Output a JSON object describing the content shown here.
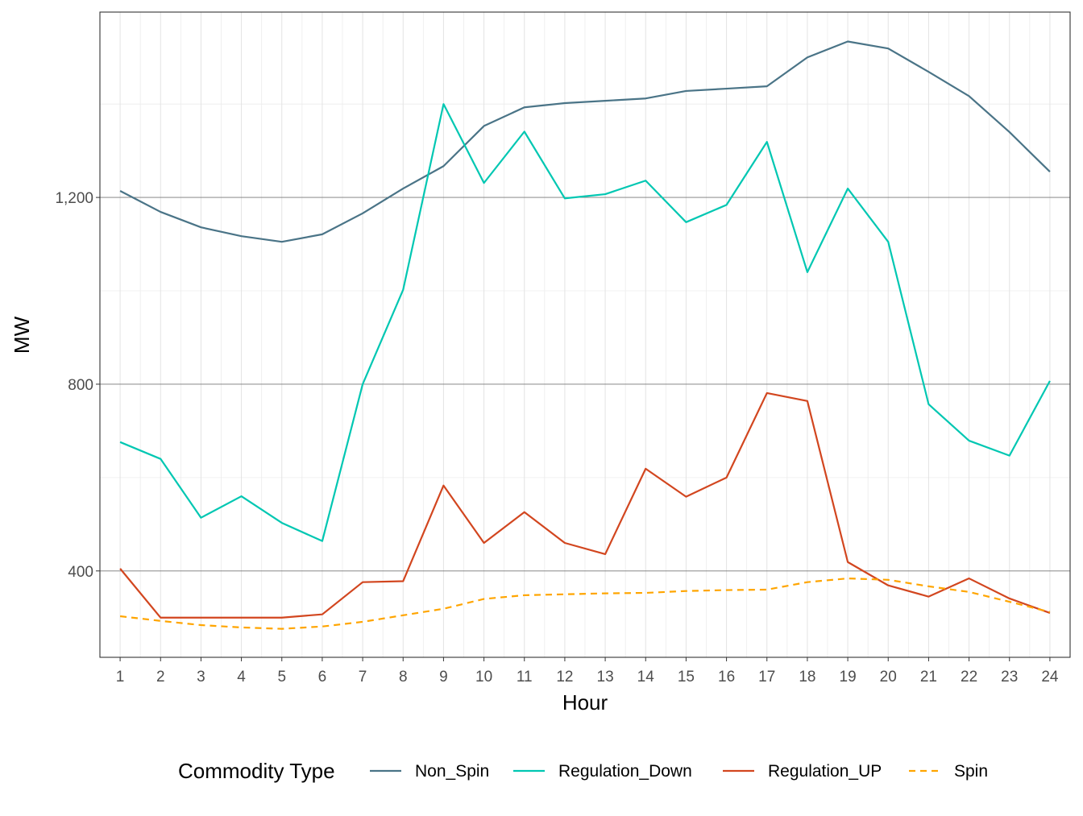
{
  "chart_data": {
    "type": "line",
    "xlabel": "Hour",
    "ylabel": "MW",
    "x": [
      1,
      2,
      3,
      4,
      5,
      6,
      7,
      8,
      9,
      10,
      11,
      12,
      13,
      14,
      15,
      16,
      17,
      18,
      19,
      20,
      21,
      22,
      23,
      24
    ],
    "x_tick_labels": [
      "1",
      "2",
      "3",
      "4",
      "5",
      "6",
      "7",
      "8",
      "9",
      "10",
      "11",
      "12",
      "13",
      "14",
      "15",
      "16",
      "17",
      "18",
      "19",
      "20",
      "21",
      "22",
      "23",
      "24"
    ],
    "xlim": [
      0.5,
      24.5
    ],
    "ylim": [
      215,
      1597
    ],
    "y_ticks": [
      400,
      800,
      1200
    ],
    "y_tick_labels": [
      "400",
      "800",
      "1,200"
    ],
    "grid": true,
    "legend_title": "Commodity Type",
    "legend_position": "bottom",
    "series": [
      {
        "name": "Non_Spin",
        "color": "#4a7487",
        "dash": "solid",
        "values": [
          1214,
          1169,
          1136,
          1117,
          1105,
          1121,
          1166,
          1219,
          1267,
          1353,
          1393,
          1402,
          1407,
          1412,
          1428,
          1433,
          1438,
          1500,
          1534,
          1519,
          1469,
          1417,
          1340,
          1255
        ]
      },
      {
        "name": "Regulation_Down",
        "color": "#00c7b2",
        "dash": "solid",
        "values": [
          676,
          640,
          514,
          560,
          503,
          464,
          800,
          1002,
          1400,
          1231,
          1341,
          1198,
          1207,
          1236,
          1147,
          1184,
          1319,
          1040,
          1219,
          1105,
          757,
          679,
          647,
          807
        ]
      },
      {
        "name": "Regulation_UP",
        "color": "#d2461f",
        "dash": "solid",
        "values": [
          405,
          300,
          300,
          300,
          300,
          307,
          376,
          378,
          583,
          460,
          526,
          460,
          436,
          619,
          559,
          600,
          781,
          764,
          419,
          369,
          345,
          384,
          341,
          310
        ]
      },
      {
        "name": "Spin",
        "color": "#ffa500",
        "dash": "dashed",
        "values": [
          303,
          293,
          284,
          279,
          276,
          281,
          291,
          305,
          319,
          340,
          348,
          350,
          352,
          353,
          357,
          359,
          360,
          376,
          384,
          381,
          367,
          355,
          334,
          312
        ]
      }
    ]
  }
}
